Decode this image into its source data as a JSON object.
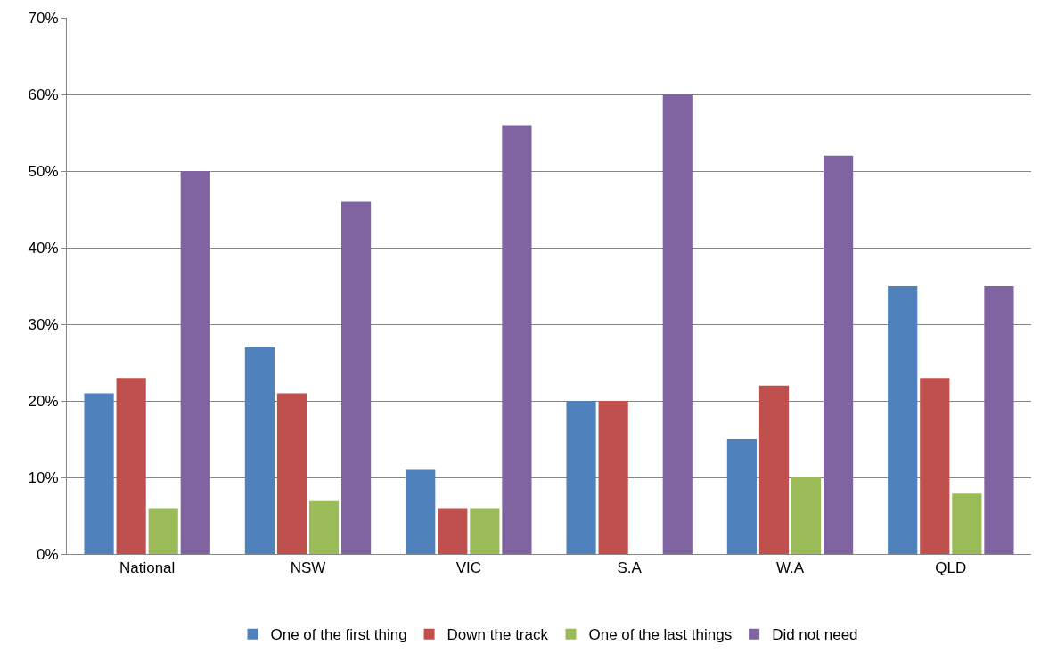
{
  "chart_data": {
    "type": "bar",
    "categories": [
      "National",
      "NSW",
      "VIC",
      "S.A",
      "W.A",
      "QLD"
    ],
    "series": [
      {
        "name": "One of the first thing",
        "color": "#4f81bd",
        "values": [
          21,
          27,
          11,
          20,
          15,
          35
        ]
      },
      {
        "name": "Down the track",
        "color": "#c0504d",
        "values": [
          23,
          21,
          6,
          20,
          22,
          23
        ]
      },
      {
        "name": "One of the last things",
        "color": "#9bbb59",
        "values": [
          6,
          7,
          6,
          0,
          10,
          8
        ]
      },
      {
        "name": "Did not need",
        "color": "#8064a2",
        "values": [
          50,
          46,
          56,
          60,
          52,
          35
        ]
      }
    ],
    "ylim": [
      0,
      70
    ],
    "yticks": [
      {
        "value": 0,
        "label": "0%"
      },
      {
        "value": 10,
        "label": "10%"
      },
      {
        "value": 20,
        "label": "20%"
      },
      {
        "value": 30,
        "label": "30%"
      },
      {
        "value": 40,
        "label": "40%"
      },
      {
        "value": 50,
        "label": "50%"
      },
      {
        "value": 60,
        "label": "60%"
      },
      {
        "value": 70,
        "label": "70%"
      }
    ],
    "grid": "y",
    "legend": "bottom"
  }
}
